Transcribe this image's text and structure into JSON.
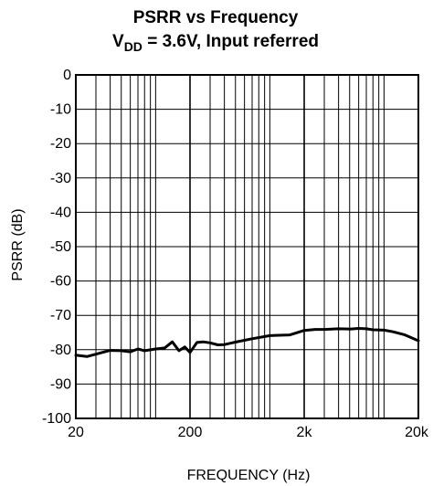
{
  "chart_data": {
    "type": "line",
    "title": {
      "line1": "PSRR vs Frequency",
      "line2_prefix": "V",
      "line2_subscript": "DD",
      "line2_suffix": " = 3.6V, Input referred"
    },
    "xlabel": "FREQUENCY (Hz)",
    "ylabel": "PSRR (dB)",
    "x_scale": "log",
    "xlim": [
      20,
      20000
    ],
    "ylim": [
      -100,
      0
    ],
    "x_ticks": [
      {
        "value": 20,
        "label": "20"
      },
      {
        "value": 200,
        "label": "200"
      },
      {
        "value": 2000,
        "label": "2k"
      },
      {
        "value": 20000,
        "label": "20k"
      }
    ],
    "y_ticks": [
      {
        "value": 0,
        "label": "0"
      },
      {
        "value": -10,
        "label": "-10"
      },
      {
        "value": -20,
        "label": "-20"
      },
      {
        "value": -30,
        "label": "-30"
      },
      {
        "value": -40,
        "label": "-40"
      },
      {
        "value": -50,
        "label": "-50"
      },
      {
        "value": -60,
        "label": "-60"
      },
      {
        "value": -70,
        "label": "-70"
      },
      {
        "value": -80,
        "label": "-80"
      },
      {
        "value": -90,
        "label": "-90"
      },
      {
        "value": -100,
        "label": "-100"
      }
    ],
    "x_minor_grid": [
      30,
      40,
      50,
      60,
      70,
      80,
      90,
      100,
      300,
      400,
      500,
      600,
      700,
      800,
      900,
      1000,
      3000,
      4000,
      5000,
      6000,
      7000,
      8000,
      9000,
      10000
    ],
    "grid": true,
    "colors": {
      "line": "#000000",
      "grid": "#000000",
      "background": "#ffffff"
    },
    "series": [
      {
        "x": [
          20,
          25,
          30,
          35,
          40,
          50,
          60,
          70,
          80,
          100,
          120,
          140,
          160,
          180,
          200,
          230,
          260,
          300,
          350,
          400,
          500,
          700,
          1000,
          1200,
          1500,
          2000,
          2500,
          3000,
          4000,
          5000,
          6000,
          7000,
          8000,
          10000,
          12000,
          15000,
          20000
        ],
        "y": [
          -81.6,
          -82.0,
          -81.3,
          -80.7,
          -80.2,
          -80.3,
          -80.6,
          -79.8,
          -80.3,
          -79.8,
          -79.5,
          -77.7,
          -80.3,
          -79.2,
          -80.8,
          -77.9,
          -77.7,
          -78.0,
          -78.6,
          -78.5,
          -77.8,
          -76.8,
          -75.9,
          -75.8,
          -75.7,
          -74.4,
          -74.1,
          -74.1,
          -73.9,
          -74.0,
          -73.8,
          -73.9,
          -74.2,
          -74.3,
          -74.8,
          -75.6,
          -77.4
        ]
      }
    ]
  }
}
